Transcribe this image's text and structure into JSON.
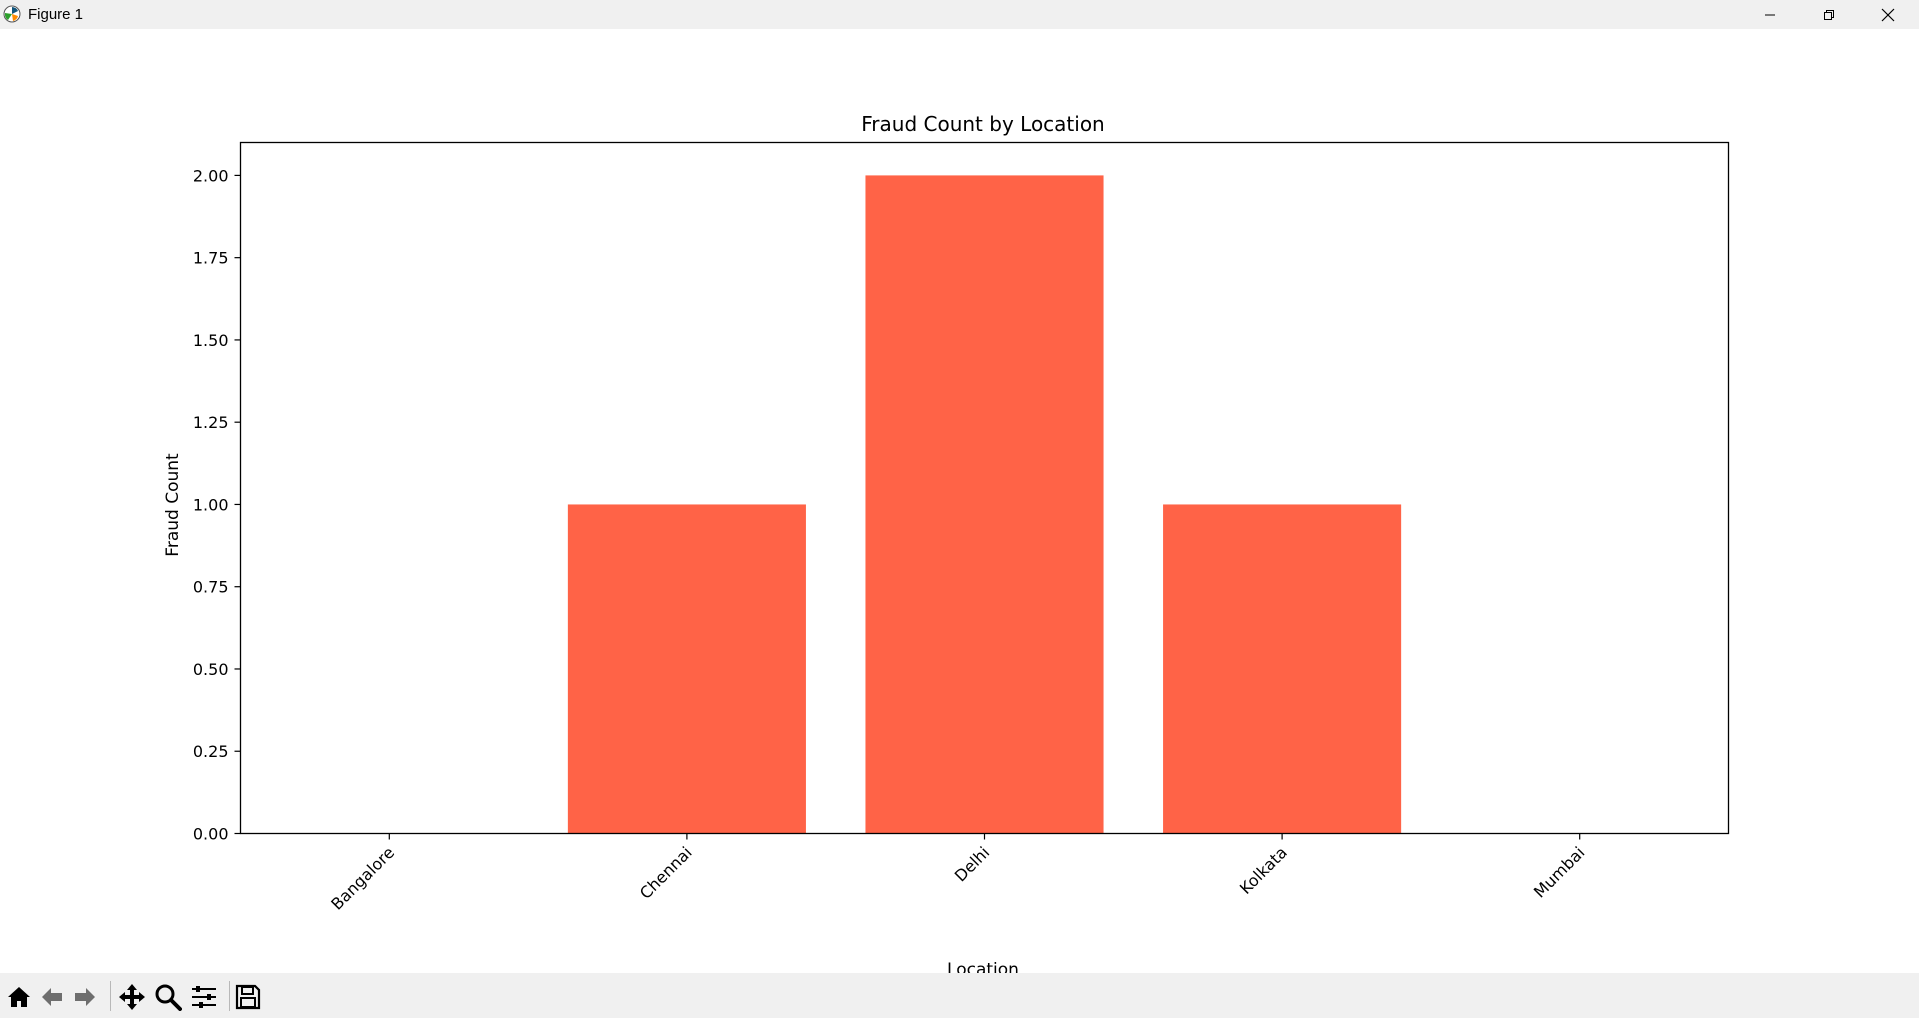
{
  "window": {
    "title": "Figure 1",
    "icons": [
      "matplotlib-app-icon",
      "minimize-icon",
      "maximize-icon",
      "close-icon"
    ]
  },
  "colors": {
    "bar": "#ff6347",
    "axes": "#000000",
    "chrome": "#f0f0f0"
  },
  "toolbar": {
    "tools": [
      "home-icon",
      "back-icon",
      "forward-icon",
      "pan-icon",
      "zoom-icon",
      "configure-subplots-icon",
      "save-icon"
    ]
  },
  "chart_data": {
    "type": "bar",
    "title": "Fraud Count by Location",
    "xlabel": "Location",
    "ylabel": "Fraud Count",
    "categories": [
      "Bangalore",
      "Chennai",
      "Delhi",
      "Kolkata",
      "Mumbai"
    ],
    "values": [
      0,
      1,
      2,
      1,
      0
    ],
    "ylim": [
      0,
      2.1
    ],
    "yticks": [
      "0.00",
      "0.25",
      "0.50",
      "0.75",
      "1.00",
      "1.25",
      "1.50",
      "1.75",
      "2.00"
    ],
    "ytick_values": [
      0,
      0.25,
      0.5,
      0.75,
      1.0,
      1.25,
      1.5,
      1.75,
      2.0
    ],
    "xtick_rotation": "45 degrees",
    "grid": false,
    "legend": "none"
  }
}
